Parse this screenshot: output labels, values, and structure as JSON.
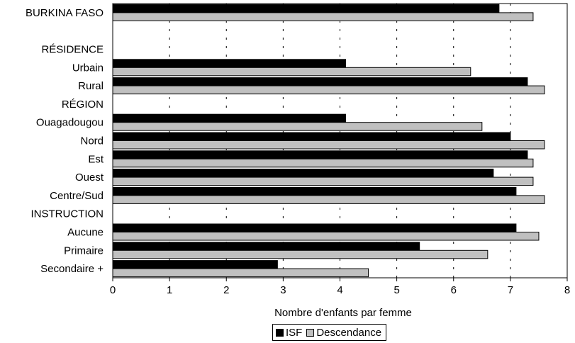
{
  "chart_data": {
    "type": "bar",
    "orientation": "horizontal",
    "xlabel": "Nombre d'enfants par femme",
    "xlim": [
      0,
      8
    ],
    "xticks": [
      "0",
      "1",
      "2",
      "3",
      "4",
      "5",
      "6",
      "7",
      "8"
    ],
    "grid": "vertical dashed",
    "legend_placement": "bottom-center",
    "colors": {
      "ISF": "#000000",
      "Descendance": "#c0c0c0"
    },
    "rows": [
      {
        "label": "BURKINA FASO",
        "heading": false,
        "values": [
          6.8,
          7.4
        ]
      },
      {
        "label": "",
        "heading": true,
        "values": null
      },
      {
        "label": "RÉSIDENCE",
        "heading": true,
        "values": null
      },
      {
        "label": "Urbain",
        "heading": false,
        "values": [
          4.1,
          6.3
        ]
      },
      {
        "label": "Rural",
        "heading": false,
        "values": [
          7.3,
          7.6
        ]
      },
      {
        "label": "RÉGION",
        "heading": true,
        "values": null
      },
      {
        "label": "Ouagadougou",
        "heading": false,
        "values": [
          4.1,
          6.5
        ]
      },
      {
        "label": "Nord",
        "heading": false,
        "values": [
          7.0,
          7.6
        ]
      },
      {
        "label": "Est",
        "heading": false,
        "values": [
          7.3,
          7.4
        ]
      },
      {
        "label": "Ouest",
        "heading": false,
        "values": [
          6.7,
          7.4
        ]
      },
      {
        "label": "Centre/Sud",
        "heading": false,
        "values": [
          7.1,
          7.6
        ]
      },
      {
        "label": "INSTRUCTION",
        "heading": true,
        "values": null
      },
      {
        "label": "Aucune",
        "heading": false,
        "values": [
          7.1,
          7.5
        ]
      },
      {
        "label": "Primaire",
        "heading": false,
        "values": [
          5.4,
          6.6
        ]
      },
      {
        "label": "Secondaire +",
        "heading": false,
        "values": [
          2.9,
          4.5
        ]
      }
    ],
    "series": [
      {
        "name": "ISF"
      },
      {
        "name": "Descendance"
      }
    ]
  }
}
